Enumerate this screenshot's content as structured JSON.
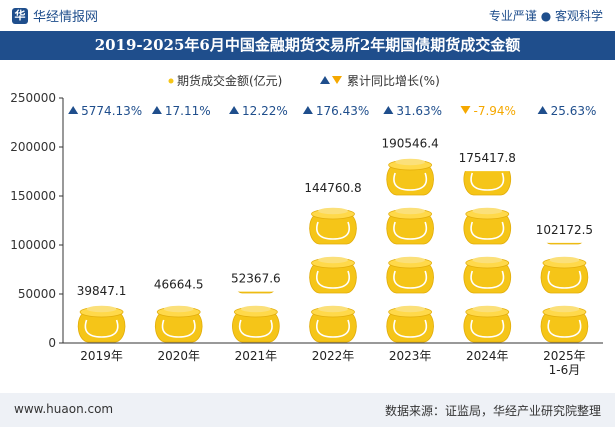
{
  "header": {
    "brand": "华经情报网",
    "slogan": "专业严谨 ● 客观科学"
  },
  "title": "2019-2025年6月中国金融期货交易所2年期国债期货成交金额",
  "footer": {
    "website": "www.huaon.com",
    "source": "数据来源：证监局，华经产业研究院整理"
  },
  "colors": {
    "header_bg": "#1f4e8c",
    "pot_gold": "#f5c518",
    "growth_up": "#1f4e8c",
    "growth_down": "#f5a800"
  },
  "chart_data": {
    "type": "bar",
    "categories": [
      "2019年",
      "2020年",
      "2021年",
      "2022年",
      "2023年",
      "2024年",
      "2025年\n1-6月"
    ],
    "series": [
      {
        "name": "期货成交金额(亿元)",
        "values": [
          39847.1,
          46664.5,
          52367.6,
          144760.8,
          190546.4,
          175417.8,
          102172.5
        ],
        "labels": [
          "39847.1",
          "46664.5",
          "52367.6",
          "144760.8",
          "190546.4",
          "175417.8",
          "102172.5"
        ]
      },
      {
        "name": "累计同比增长(%)",
        "values": [
          5774.13,
          17.11,
          12.22,
          176.43,
          31.63,
          -7.94,
          25.63
        ],
        "labels": [
          "5774.13%",
          "17.11%",
          "12.22%",
          "176.43%",
          "31.63%",
          "-7.94%",
          "25.63%"
        ]
      }
    ],
    "ylim": [
      0,
      250000
    ],
    "yticks": [
      "0",
      "50000",
      "100000",
      "150000",
      "200000",
      "250000"
    ],
    "legend_position": "top-center",
    "grid": false,
    "marker": "gold-pot"
  }
}
